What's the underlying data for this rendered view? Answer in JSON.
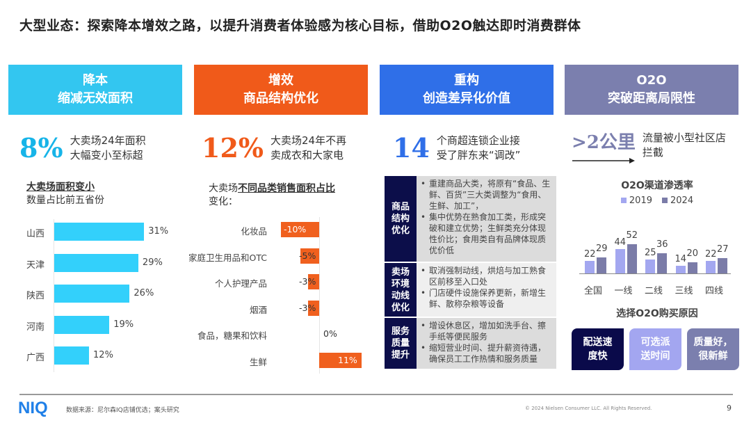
{
  "title": "大型业态：探索降本增效之路，以提升消费者体验感为核心目标，借助O2O触达即时消费群体",
  "cards": [
    {
      "line1": "降本",
      "line2": "缩减无效面积",
      "color": "#33c6f0"
    },
    {
      "line1": "增效",
      "line2": "商品结构优化",
      "color": "#f05a1a"
    },
    {
      "line1": "重构",
      "line2": "创造差异化价值",
      "color": "#2f6fe8"
    },
    {
      "line1": "O2O",
      "line2": "突破距离局限性",
      "color": "#7b7fae"
    }
  ],
  "stats": [
    {
      "value": "8%",
      "line1": "大卖场24年面积",
      "line2": "大幅变小至标超",
      "color": "#17b4e8"
    },
    {
      "value": "12%",
      "line1": "大卖场24年不再",
      "line2": "卖成衣和大家电",
      "color": "#f05a1a"
    },
    {
      "value": "14",
      "line1": "个商超连锁企业接",
      "line2": "受了胖东来“调改”",
      "color": "#2f6fe8"
    },
    {
      "value": ">2公里",
      "line1": "流量被小型社区店",
      "line2": "拦截",
      "color": "#7b7fae"
    }
  ],
  "chart_data": [
    {
      "type": "bar",
      "orientation": "horizontal",
      "title": "大卖场面积变小",
      "subtitle": "数量占比前五省份",
      "categories": [
        "山西",
        "天津",
        "陕西",
        "河南",
        "广西"
      ],
      "values": [
        31,
        29,
        26,
        19,
        12
      ],
      "labels": [
        "31%",
        "29%",
        "26%",
        "19%",
        "12%"
      ],
      "color": "#33d0fb"
    },
    {
      "type": "bar",
      "orientation": "horizontal",
      "title_plain": "大卖场",
      "title_bold": "不同品类销售面积占比",
      "subtitle": "变化：",
      "categories": [
        "化妆品",
        "家庭卫生用品和OTC",
        "个人护理产品",
        "烟酒",
        "食品，糖果和饮料",
        "生鲜"
      ],
      "values": [
        -10,
        -5,
        -3,
        -3,
        0,
        11
      ],
      "labels": [
        "-10%",
        "-5%",
        "-3%",
        "-3%",
        "0%",
        "11%"
      ],
      "color": "#f0601e"
    },
    {
      "type": "bar",
      "title": "O2O渠道渗透率",
      "categories": [
        "全国",
        "一线",
        "二线",
        "三线",
        "四线"
      ],
      "series": [
        {
          "name": "2019",
          "values": [
            22,
            44,
            25,
            14,
            22
          ],
          "color": "#a3a7f0"
        },
        {
          "name": "2024",
          "values": [
            29,
            52,
            36,
            20,
            27
          ],
          "color": "#7b7ca8"
        }
      ],
      "legend": "top"
    }
  ],
  "table": [
    {
      "key": "商品结构优化",
      "items": [
        "重建商品大类，将原有“食品、生鲜、百货”三大类调整为“食用、生鲜、加工”，",
        "集中优势在熟食加工类，形成突破和建立优势；生鲜类充分体现性价比；食用类自有品牌体现质优价低"
      ],
      "bg": "#dcdcdc"
    },
    {
      "key": "卖场环境动线优化",
      "items": [
        "取消强制动线，烘焙与加工熟食区前移至入口处",
        "门店硬件设施保养更新，新增生鲜、散称杂粮等设备"
      ],
      "bg": "#efefef"
    },
    {
      "key": "服务质量提升",
      "items": [
        "增设休息区，增加如洗手台、擦手纸等便民服务",
        "缩短营业时间、提升薪资待遇，确保员工工作热情和服务质量"
      ],
      "bg": "#dcdcdc"
    }
  ],
  "reasons": {
    "title": "选择O2O购买原因",
    "items": [
      {
        "text": "配送速度快",
        "color": "#0a0a4a"
      },
      {
        "text": "可选派送时间",
        "color": "#a3a6f0"
      },
      {
        "text": "质量好，很新鲜",
        "color": "#7b7fae"
      }
    ]
  },
  "footer": {
    "logo": "NIQ",
    "source": "数据来源：尼尔森IQ店铺优选；案头研究",
    "copyright": "© 2024 Nielsen Consumer LLC. All Rights Reserved.",
    "page": "9"
  }
}
